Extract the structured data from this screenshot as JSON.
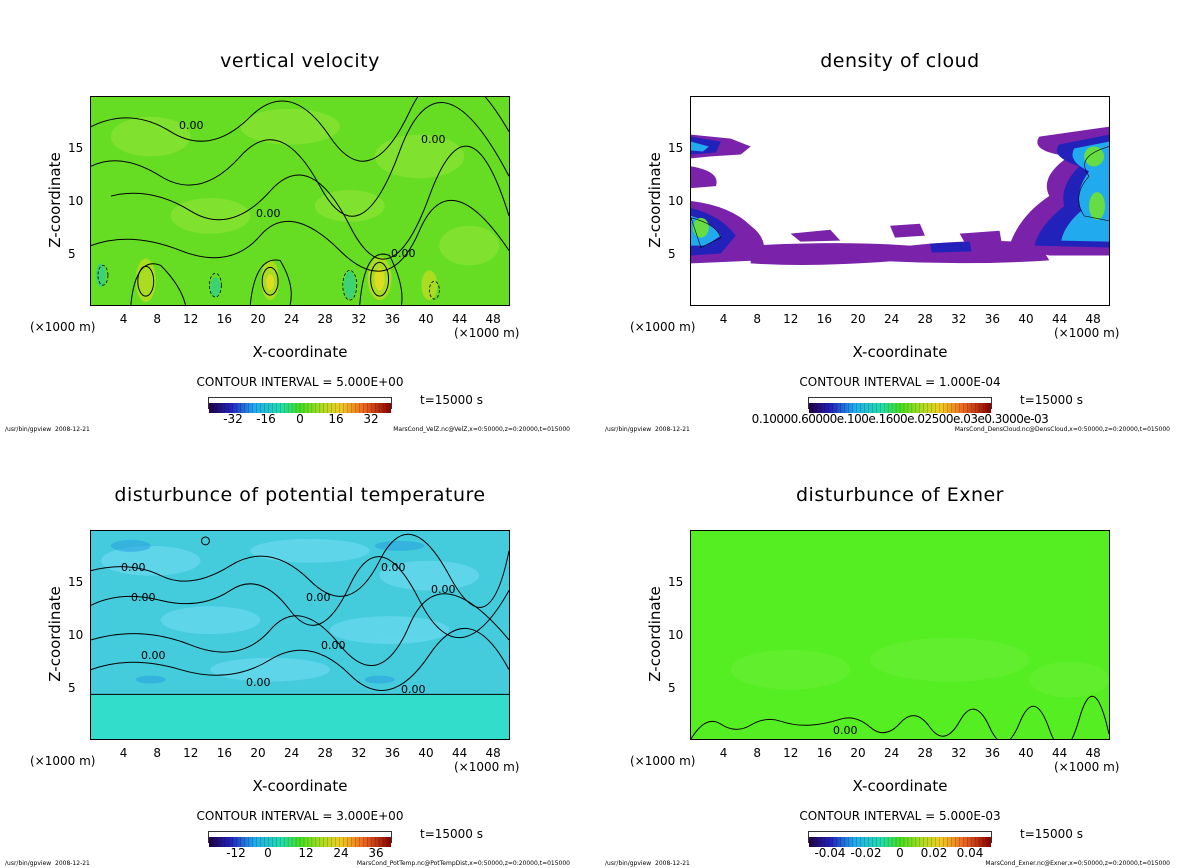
{
  "footer_program": "/usr/bin/gpview",
  "footer_date": "2008-12-21",
  "axis_common": {
    "xlabel": "X-coordinate",
    "ylabel": "Z-coordinate",
    "xunit_left": "(×1000 m)",
    "xunit_right": "(×1000 m)",
    "xticks": [
      "4",
      "8",
      "12",
      "16",
      "20",
      "24",
      "28",
      "32",
      "36",
      "40",
      "44",
      "48"
    ],
    "yticks": [
      "5",
      "10",
      "15"
    ]
  },
  "chart_data": [
    {
      "type": "heatmap",
      "title": "vertical velocity",
      "xlabel": "X-coordinate",
      "ylabel": "Z-coordinate",
      "xlim": [
        0,
        50
      ],
      "ylim": [
        0,
        20
      ],
      "contour_interval": "CONTOUR INTERVAL = 5.000E+00",
      "time": "t=15000 s",
      "colorbar_ticks": [
        "-32",
        "-16",
        "0",
        "16",
        "32"
      ],
      "contour_label": "0.00",
      "footer_file": "MarsCond_VelZ.nc@VelZ,x=0:50000,z=0:20000,t=015000",
      "base_color": "#66dd22"
    },
    {
      "type": "heatmap",
      "title": "density of cloud",
      "xlabel": "X-coordinate",
      "ylabel": "Z-coordinate",
      "xlim": [
        0,
        50
      ],
      "ylim": [
        0,
        20
      ],
      "contour_interval": "CONTOUR INTERVAL = 1.000E-04",
      "time": "t=15000 s",
      "colorbar_ticks_text": "0.10000.60000e.100e.1600e.02500e.03e0.3000e-03",
      "footer_file": "MarsCond_DensCloud.nc@DensCloud,x=0:50000,z=0:20000,t=015000",
      "base_color": "#ffffff"
    },
    {
      "type": "heatmap",
      "title": "disturbunce of potential temperature",
      "xlabel": "X-coordinate",
      "ylabel": "Z-coordinate",
      "xlim": [
        0,
        50
      ],
      "ylim": [
        0,
        20
      ],
      "contour_interval": "CONTOUR INTERVAL = 3.000E+00",
      "time": "t=15000 s",
      "colorbar_ticks": [
        "-12",
        "0",
        "12",
        "24",
        "36"
      ],
      "contour_label": "0.00",
      "footer_file": "MarsCond_PotTemp.nc@PotTempDist,x=0:50000,z=0:20000,t=015000",
      "base_color": "#44ccdd"
    },
    {
      "type": "heatmap",
      "title": "disturbunce of Exner",
      "xlabel": "X-coordinate",
      "ylabel": "Z-coordinate",
      "xlim": [
        0,
        50
      ],
      "ylim": [
        0,
        20
      ],
      "contour_interval": "CONTOUR INTERVAL = 5.000E-03",
      "time": "t=15000 s",
      "colorbar_ticks": [
        "-0.04",
        "-0.02",
        "0",
        "0.02",
        "0.04"
      ],
      "contour_label": "0.00",
      "footer_file": "MarsCond_Exner.nc@Exner,x=0:50000,z=0:20000,t=015000",
      "base_color": "#55ee22"
    }
  ]
}
